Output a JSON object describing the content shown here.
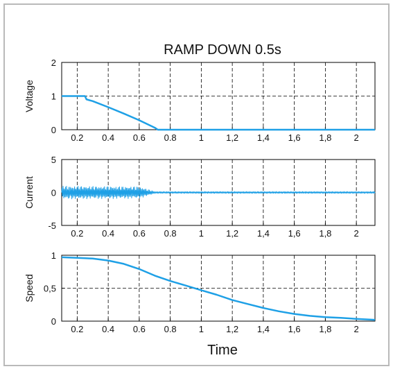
{
  "chart_data": {
    "type": "line",
    "title": "RAMP DOWN 0.5s",
    "xlabel": "Time",
    "line_color": "#1ea0e6",
    "grid": true,
    "xlim": [
      0.1,
      2.12
    ],
    "x_ticks": [
      0.2,
      0.4,
      0.6,
      0.8,
      1,
      1.2,
      1.4,
      1.6,
      1.8,
      2
    ],
    "x_tick_labels": [
      "0.2",
      "0.4",
      "0.6",
      "0.8",
      "1",
      "1,2",
      "1,4",
      "1,6",
      "1,8",
      "2"
    ],
    "panels": [
      {
        "ylabel": "Voltage",
        "ylim": [
          0,
          2
        ],
        "y_ticks": [
          0,
          1,
          2
        ],
        "y_tick_labels": [
          "0",
          "1",
          "2"
        ],
        "series": [
          {
            "x": [
              0.1,
              0.25,
              0.26,
              0.3,
              0.4,
              0.5,
              0.6,
              0.7,
              0.72,
              0.8,
              1.0,
              1.2,
              1.4,
              1.6,
              1.8,
              2.0,
              2.12
            ],
            "y": [
              1.0,
              1.0,
              0.9,
              0.85,
              0.67,
              0.48,
              0.28,
              0.06,
              0.0,
              0.0,
              0.0,
              0.0,
              0.0,
              0.0,
              0.0,
              0.0,
              0.0
            ]
          }
        ]
      },
      {
        "ylabel": "Current",
        "ylim": [
          -5,
          5
        ],
        "y_ticks": [
          -5,
          0,
          5
        ],
        "y_tick_labels": [
          "-5",
          "0",
          "5"
        ],
        "series": [
          {
            "envelope_x": [
              0.1,
              0.6,
              0.7,
              2.12
            ],
            "envelope_amplitude": [
              1.0,
              0.9,
              0.15,
              0.15
            ]
          }
        ]
      },
      {
        "ylabel": "Speed",
        "ylim": [
          0,
          1
        ],
        "y_ticks": [
          0,
          0.5,
          1
        ],
        "y_tick_labels": [
          "0",
          "0,5",
          "1"
        ],
        "series": [
          {
            "x": [
              0.1,
              0.2,
              0.3,
              0.4,
              0.5,
              0.6,
              0.7,
              0.8,
              0.9,
              1.0,
              1.1,
              1.2,
              1.3,
              1.4,
              1.5,
              1.6,
              1.7,
              1.8,
              1.9,
              2.0,
              2.12
            ],
            "y": [
              0.97,
              0.96,
              0.95,
              0.92,
              0.87,
              0.79,
              0.69,
              0.61,
              0.54,
              0.47,
              0.4,
              0.32,
              0.26,
              0.2,
              0.15,
              0.11,
              0.08,
              0.06,
              0.05,
              0.035,
              0.02
            ]
          }
        ]
      }
    ]
  }
}
